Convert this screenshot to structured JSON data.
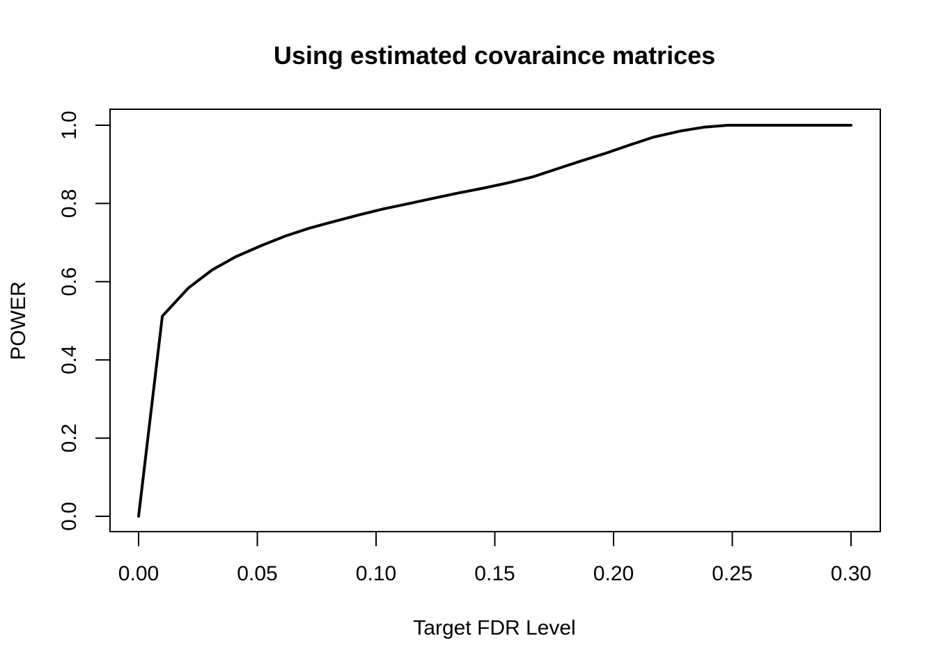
{
  "chart_data": {
    "type": "line",
    "title": "Using estimated covaraince matrices",
    "xlabel": "Target FDR Level",
    "ylabel": "POWER",
    "xlim": [
      0,
      0.3
    ],
    "ylim": [
      0,
      1.0
    ],
    "x_ticks": [
      "0.00",
      "0.05",
      "0.10",
      "0.15",
      "0.20",
      "0.25",
      "0.30"
    ],
    "y_ticks": [
      "0.0",
      "0.2",
      "0.4",
      "0.6",
      "0.8",
      "1.0"
    ],
    "grid": false,
    "legend": "none",
    "series": [
      {
        "color": "#000000",
        "x": [
          0.0,
          0.01,
          0.021,
          0.031,
          0.041,
          0.052,
          0.062,
          0.072,
          0.083,
          0.093,
          0.103,
          0.114,
          0.124,
          0.134,
          0.145,
          0.155,
          0.166,
          0.176,
          0.186,
          0.197,
          0.207,
          0.217,
          0.228,
          0.238,
          0.248,
          0.259,
          0.269,
          0.279,
          0.29,
          0.3
        ],
        "y": [
          0.0,
          0.512,
          0.584,
          0.63,
          0.664,
          0.693,
          0.717,
          0.737,
          0.755,
          0.771,
          0.786,
          0.8,
          0.813,
          0.826,
          0.839,
          0.852,
          0.868,
          0.888,
          0.908,
          0.929,
          0.95,
          0.97,
          0.985,
          0.995,
          1.0,
          1.0,
          1.0,
          1.0,
          1.0,
          1.0
        ]
      }
    ]
  }
}
